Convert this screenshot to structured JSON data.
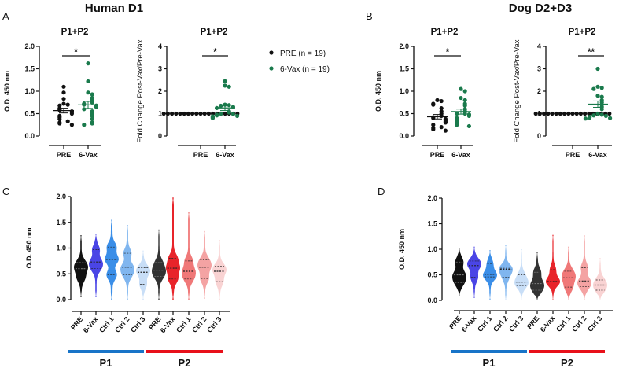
{
  "headers": {
    "left": "Human D1",
    "right": "Dog D2+D3"
  },
  "panel_labels": {
    "a": "A",
    "b": "B",
    "c": "C",
    "d": "D"
  },
  "legend": [
    {
      "label": "PRE (n = 19)",
      "color": "#111111"
    },
    {
      "label": "6-Vax (n = 19)",
      "color": "#1a7a4c"
    }
  ],
  "chart_data": [
    {
      "id": "A1",
      "type": "scatter",
      "title": "P1+P2",
      "ylabel": "O.D. 450 nm",
      "ylim": [
        0,
        2
      ],
      "yticks": [
        0,
        0.5,
        1.0,
        1.5,
        2.0
      ],
      "tick_decimals": 1,
      "categories": [
        "PRE",
        "6-Vax"
      ],
      "significance": "*",
      "series": [
        {
          "name": "PRE",
          "color": "#111111",
          "values": [
            1.1,
            0.97,
            0.83,
            0.72,
            0.7,
            0.68,
            0.62,
            0.6,
            0.58,
            0.55,
            0.53,
            0.5,
            0.45,
            0.42,
            0.38,
            0.33,
            0.3,
            0.28,
            0.25
          ]
        },
        {
          "name": "6-Vax",
          "color": "#1a7a4c",
          "values": [
            1.62,
            1.22,
            0.97,
            0.93,
            0.85,
            0.8,
            0.75,
            0.72,
            0.7,
            0.68,
            0.65,
            0.6,
            0.55,
            0.5,
            0.45,
            0.38,
            0.3,
            0.28,
            0.25
          ]
        }
      ]
    },
    {
      "id": "A2",
      "type": "scatter",
      "title": "P1+P2",
      "ylabel": "Fold Change Post-Vax/Pre-Vax",
      "ylim": [
        0,
        4
      ],
      "yticks": [
        0,
        1,
        2,
        3,
        4
      ],
      "tick_decimals": 0,
      "categories": [
        "PRE",
        "6-Vax"
      ],
      "significance": "*",
      "series": [
        {
          "name": "PRE",
          "color": "#111111",
          "values": [
            1,
            1,
            1,
            1,
            1,
            1,
            1,
            1,
            1,
            1,
            1,
            1,
            1,
            1,
            1,
            1,
            1,
            1,
            1
          ]
        },
        {
          "name": "6-Vax",
          "color": "#1a7a4c",
          "values": [
            2.45,
            2.25,
            2.2,
            1.4,
            1.38,
            1.35,
            1.3,
            1.25,
            1.1,
            1.05,
            1.0,
            0.98,
            0.95,
            0.92,
            0.9,
            0.88,
            0.85,
            0.82,
            0.8
          ]
        }
      ]
    },
    {
      "id": "B1",
      "type": "scatter",
      "title": "P1+P2",
      "ylabel": "O.D. 450 nm",
      "ylim": [
        0,
        2
      ],
      "yticks": [
        0,
        0.5,
        1.0,
        1.5,
        2.0
      ],
      "tick_decimals": 1,
      "categories": [
        "PRE",
        "6-Vax"
      ],
      "significance": "*",
      "series": [
        {
          "name": "PRE",
          "color": "#111111",
          "values": [
            0.8,
            0.78,
            0.72,
            0.7,
            0.62,
            0.55,
            0.5,
            0.45,
            0.42,
            0.4,
            0.38,
            0.35,
            0.32,
            0.3,
            0.25,
            0.2,
            0.18,
            0.15,
            0.12
          ]
        },
        {
          "name": "6-Vax",
          "color": "#1a7a4c",
          "values": [
            1.05,
            1.0,
            0.85,
            0.8,
            0.72,
            0.68,
            0.6,
            0.55,
            0.5,
            0.5,
            0.48,
            0.45,
            0.4,
            0.38,
            0.35,
            0.3,
            0.28,
            0.25,
            0.22
          ]
        }
      ]
    },
    {
      "id": "B2",
      "type": "scatter",
      "title": "P1+P2",
      "ylabel": "Fold Change Post-Vax/Pre-Vax",
      "ylim": [
        0,
        4
      ],
      "yticks": [
        0,
        1,
        2,
        3,
        4
      ],
      "tick_decimals": 0,
      "categories": [
        "PRE",
        "6-Vax"
      ],
      "significance": "**",
      "series": [
        {
          "name": "PRE",
          "color": "#111111",
          "values": [
            1,
            1,
            1,
            1,
            1,
            1,
            1,
            1,
            1,
            1,
            1,
            1,
            1,
            1,
            1,
            1,
            1,
            1,
            1
          ]
        },
        {
          "name": "6-Vax",
          "color": "#1a7a4c",
          "values": [
            3.0,
            2.2,
            2.15,
            2.1,
            1.8,
            1.75,
            1.6,
            1.5,
            1.4,
            1.3,
            1.2,
            1.0,
            0.95,
            0.92,
            0.9,
            0.85,
            0.82,
            0.8,
            0.78
          ]
        }
      ]
    },
    {
      "id": "C",
      "type": "violin",
      "ylabel": "O.D. 450 nm",
      "ylim": [
        0,
        2
      ],
      "yticks": [
        0,
        0.5,
        1.0,
        1.5,
        2.0
      ],
      "tick_decimals": 1,
      "groups": [
        {
          "label": "P1",
          "color": "#1874c8"
        },
        {
          "label": "P2",
          "color": "#e8101a"
        }
      ],
      "violins": [
        {
          "label": "PRE",
          "group": "P1",
          "color": "#111111",
          "min": 0.05,
          "max": 1.25,
          "q1": 0.42,
          "median": 0.6,
          "q3": 0.72
        },
        {
          "label": "6-Vax",
          "group": "P1",
          "color": "#4a45e6",
          "min": 0.05,
          "max": 1.28,
          "q1": 0.6,
          "median": 0.73,
          "q3": 0.97
        },
        {
          "label": "Ctrl 1",
          "group": "P1",
          "color": "#3a8ee8",
          "min": 0.0,
          "max": 1.55,
          "q1": 0.48,
          "median": 0.78,
          "q3": 1.02
        },
        {
          "label": "Ctrl 2",
          "group": "P1",
          "color": "#80b6ef",
          "min": 0.0,
          "max": 1.45,
          "q1": 0.48,
          "median": 0.63,
          "q3": 0.9
        },
        {
          "label": "Ctrl 3",
          "group": "P1",
          "color": "#c8def7",
          "min": 0.0,
          "max": 0.95,
          "q1": 0.3,
          "median": 0.53,
          "q3": 0.62
        },
        {
          "label": "PRE",
          "group": "P2",
          "color": "#333333",
          "min": 0.0,
          "max": 1.36,
          "q1": 0.45,
          "median": 0.57,
          "q3": 0.72
        },
        {
          "label": "6-Vax",
          "group": "P2",
          "color": "#e8242a",
          "min": 0.0,
          "max": 1.98,
          "q1": 0.4,
          "median": 0.61,
          "q3": 0.8
        },
        {
          "label": "Ctrl 1",
          "group": "P2",
          "color": "#f07878",
          "min": 0.0,
          "max": 1.7,
          "q1": 0.4,
          "median": 0.55,
          "q3": 0.75
        },
        {
          "label": "Ctrl 2",
          "group": "P2",
          "color": "#f4a3a3",
          "min": 0.02,
          "max": 1.33,
          "q1": 0.41,
          "median": 0.63,
          "q3": 0.77
        },
        {
          "label": "Ctrl 3",
          "group": "P2",
          "color": "#f9d3d3",
          "min": 0.0,
          "max": 1.16,
          "q1": 0.35,
          "median": 0.55,
          "q3": 0.65
        }
      ]
    },
    {
      "id": "D",
      "type": "violin",
      "ylabel": "O.D. 450 nm",
      "ylim": [
        0,
        2
      ],
      "yticks": [
        0,
        0.5,
        1.0,
        1.5,
        2.0
      ],
      "tick_decimals": 1,
      "groups": [
        {
          "label": "P1",
          "color": "#1874c8"
        },
        {
          "label": "P2",
          "color": "#e8101a"
        }
      ],
      "violins": [
        {
          "label": "PRE",
          "group": "P1",
          "color": "#111111",
          "min": 0.08,
          "max": 1.03,
          "q1": 0.35,
          "median": 0.5,
          "q3": 0.75
        },
        {
          "label": "6-Vax",
          "group": "P1",
          "color": "#4a45e6",
          "min": 0.05,
          "max": 1.05,
          "q1": 0.45,
          "median": 0.68,
          "q3": 0.77
        },
        {
          "label": "Ctrl 1",
          "group": "P1",
          "color": "#3a8ee8",
          "min": 0.02,
          "max": 0.98,
          "q1": 0.46,
          "median": 0.51,
          "q3": 0.72
        },
        {
          "label": "Ctrl 2",
          "group": "P1",
          "color": "#80b6ef",
          "min": 0.0,
          "max": 1.08,
          "q1": 0.45,
          "median": 0.61,
          "q3": 0.63
        },
        {
          "label": "Ctrl 3",
          "group": "P1",
          "color": "#c8def7",
          "min": 0.0,
          "max": 1.0,
          "q1": 0.29,
          "median": 0.36,
          "q3": 0.5
        },
        {
          "label": "PRE",
          "group": "P2",
          "color": "#333333",
          "min": 0.0,
          "max": 0.94,
          "q1": 0.2,
          "median": 0.33,
          "q3": 0.55
        },
        {
          "label": "6-Vax",
          "group": "P2",
          "color": "#e8242a",
          "min": 0.0,
          "max": 1.28,
          "q1": 0.36,
          "median": 0.37,
          "q3": 0.6
        },
        {
          "label": "Ctrl 1",
          "group": "P2",
          "color": "#f07878",
          "min": 0.0,
          "max": 1.05,
          "q1": 0.26,
          "median": 0.44,
          "q3": 0.57
        },
        {
          "label": "Ctrl 2",
          "group": "P2",
          "color": "#f4a3a3",
          "min": 0.0,
          "max": 1.27,
          "q1": 0.27,
          "median": 0.38,
          "q3": 0.64
        },
        {
          "label": "Ctrl 3",
          "group": "P2",
          "color": "#f9d3d3",
          "min": 0.0,
          "max": 0.83,
          "q1": 0.2,
          "median": 0.3,
          "q3": 0.4
        }
      ]
    }
  ]
}
